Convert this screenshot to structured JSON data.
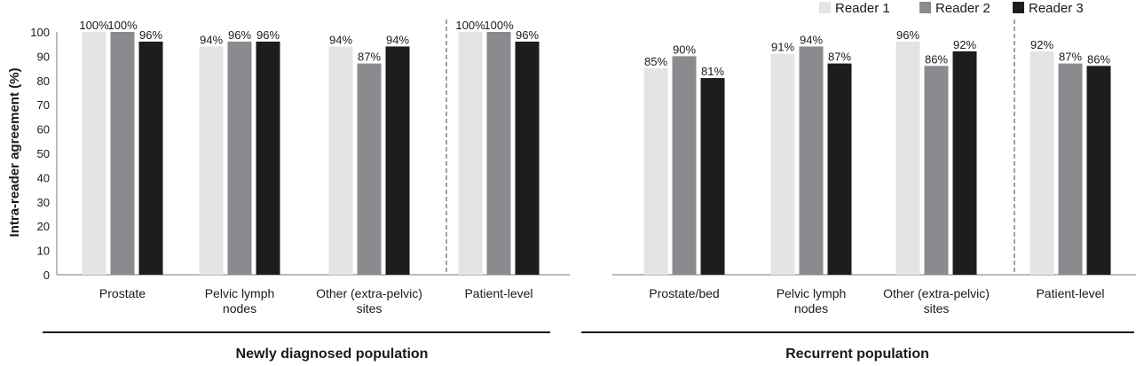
{
  "chart_data": {
    "type": "bar",
    "ylabel": "Intra-reader agreement (%)",
    "ylim": [
      0,
      100
    ],
    "yticks": [
      0,
      10,
      20,
      30,
      40,
      50,
      60,
      70,
      80,
      90,
      100
    ],
    "grid": false,
    "legend_position": "top-right",
    "legend": [
      {
        "name": "Reader 1",
        "color": "#e3e4e6"
      },
      {
        "name": "Reader 2",
        "color": "#898b8e"
      },
      {
        "name": "Reader 3",
        "color": "#1e1c1d"
      }
    ],
    "panels": [
      {
        "group_label": "Newly diagnosed population",
        "categories": [
          {
            "lines": [
              "Prostate"
            ]
          },
          {
            "lines": [
              "Pelvic lymph",
              "nodes"
            ]
          },
          {
            "lines": [
              "Other (extra-pelvic)",
              "sites"
            ]
          },
          {
            "lines": [
              "Patient-level"
            ]
          }
        ],
        "series": [
          {
            "name": "Reader 1",
            "values": [
              100,
              94,
              94,
              100
            ],
            "labels": [
              "100%",
              "94%",
              "94%",
              "100%"
            ]
          },
          {
            "name": "Reader 2",
            "values": [
              100,
              96,
              87,
              100
            ],
            "labels": [
              "100%",
              "96%",
              "87%",
              "100%"
            ]
          },
          {
            "name": "Reader 3",
            "values": [
              96,
              96,
              94,
              96
            ],
            "labels": [
              "96%",
              "96%",
              "94%",
              "96%"
            ]
          }
        ]
      },
      {
        "group_label": "Recurrent population",
        "categories": [
          {
            "lines": [
              "Prostate/bed"
            ]
          },
          {
            "lines": [
              "Pelvic lymph",
              "nodes"
            ]
          },
          {
            "lines": [
              "Other (extra-pelvic)",
              "sites"
            ]
          },
          {
            "lines": [
              "Patient-level"
            ]
          }
        ],
        "series": [
          {
            "name": "Reader 1",
            "values": [
              85,
              91,
              96,
              92
            ],
            "labels": [
              "85%",
              "91%",
              "96%",
              "92%"
            ]
          },
          {
            "name": "Reader 2",
            "values": [
              90,
              94,
              86,
              87
            ],
            "labels": [
              "90%",
              "94%",
              "86%",
              "87%"
            ]
          },
          {
            "name": "Reader 3",
            "values": [
              81,
              87,
              92,
              86
            ],
            "labels": [
              "81%",
              "87%",
              "92%",
              "86%"
            ]
          }
        ]
      }
    ]
  }
}
